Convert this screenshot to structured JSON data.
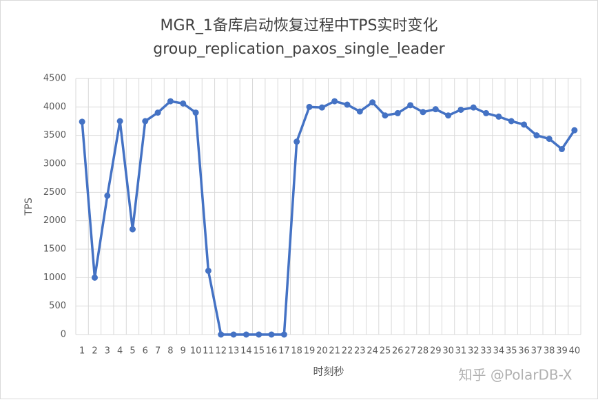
{
  "chart_data": {
    "type": "line",
    "title": "MGR_1备库启动恢复过程中TPS实时变化",
    "subtitle": "group_replication_paxos_single_leader",
    "x_label": "时刻秒",
    "y_label": "TPS",
    "watermark": "知乎 @PolarDB-X",
    "categories": [
      "1",
      "2",
      "3",
      "4",
      "5",
      "6",
      "7",
      "8",
      "9",
      "10",
      "11",
      "12",
      "13",
      "14",
      "15",
      "16",
      "17",
      "18",
      "19",
      "20",
      "21",
      "22",
      "23",
      "24",
      "25",
      "26",
      "27",
      "28",
      "29",
      "30",
      "31",
      "32",
      "33",
      "34",
      "35",
      "36",
      "37",
      "38",
      "39",
      "40"
    ],
    "series": [
      {
        "name": "TPS",
        "color": "#4472c4",
        "values": [
          3740,
          1000,
          2440,
          3750,
          1850,
          3750,
          3900,
          4100,
          4060,
          3900,
          1120,
          0,
          0,
          0,
          0,
          0,
          0,
          3390,
          4000,
          3990,
          4100,
          4040,
          3920,
          4080,
          3850,
          3890,
          4030,
          3910,
          3960,
          3850,
          3950,
          3990,
          3890,
          3830,
          3750,
          3690,
          3500,
          3440,
          3260,
          3590
        ]
      }
    ],
    "ylim": [
      0,
      4500
    ],
    "yticks": [
      0,
      500,
      1000,
      1500,
      2000,
      2500,
      3000,
      3500,
      4000,
      4500
    ],
    "grid": true
  }
}
